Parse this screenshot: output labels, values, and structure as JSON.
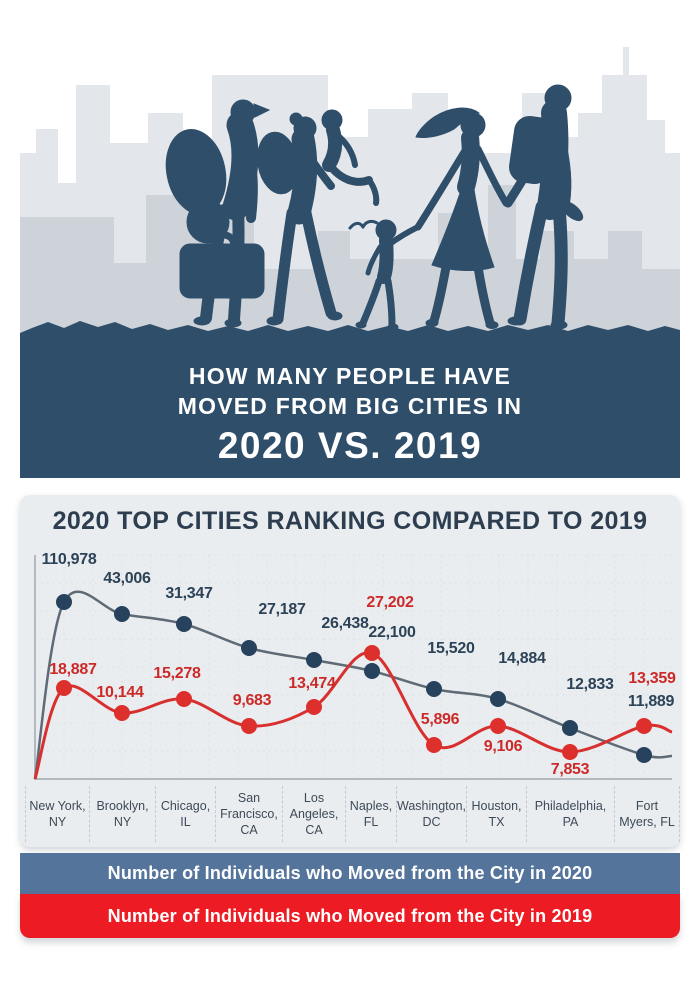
{
  "hero": {
    "title_line1": "HOW MANY PEOPLE HAVE",
    "title_line2": "MOVED FROM BIG CITIES IN",
    "title_line3": "2020 VS. 2019"
  },
  "chart_data": {
    "type": "line",
    "title": "2020 TOP CITIES RANKING COMPARED TO 2019",
    "categories": [
      "New York, NY",
      "Brooklyn, NY",
      "Chicago, IL",
      "San Francisco, CA",
      "Los Angeles, CA",
      "Naples, FL",
      "Washington, DC",
      "Houston, TX",
      "Philadelphia, PA",
      "Fort Myers, FL"
    ],
    "series": [
      {
        "name": "Number of Individuals who Moved from the City in 2020",
        "values": [
          110978,
          43006,
          31347,
          27187,
          26438,
          22100,
          15520,
          14884,
          12833,
          11889
        ],
        "line_color": "#5e6a76",
        "point_color": "#27425c",
        "label_color": "#2c4257",
        "legend_color": "#54749c"
      },
      {
        "name": "Number of Individuals who Moved from the City in 2019",
        "values": [
          18887,
          10144,
          15278,
          9683,
          13474,
          27202,
          5896,
          9106,
          7853,
          13359
        ],
        "line_color": "#d8302f",
        "point_color": "#dd2f2c",
        "label_color": "#cc2a28",
        "legend_color": "#ed1c24"
      }
    ],
    "grid": true,
    "legend_position": "bottom",
    "ylim": [
      0,
      120000
    ],
    "value_label_format": "thousands-comma"
  },
  "colors": {
    "banner_navy": "#2f4e6a",
    "card_background": "#eaedf0",
    "page_background": "#ffffff",
    "skyline_far": "#e3e6ea",
    "skyline_near": "#ced3da",
    "axis": "#b3b9c1",
    "grid_dots": "#d9dde2"
  }
}
